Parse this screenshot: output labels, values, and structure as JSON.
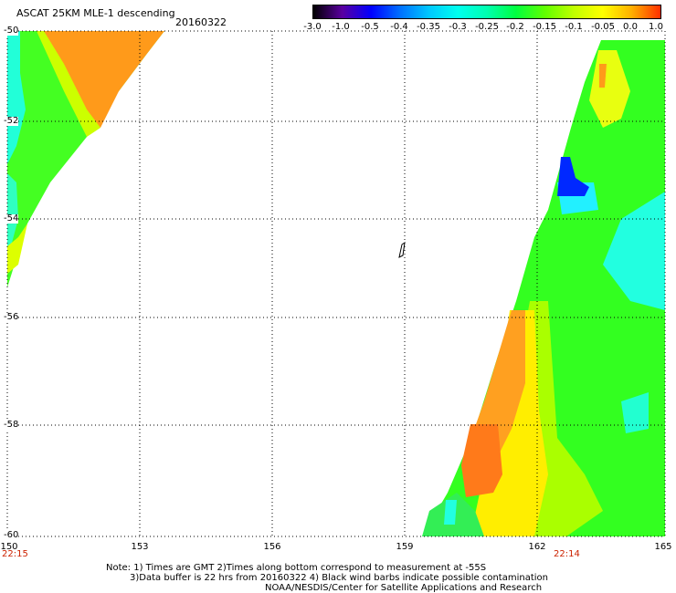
{
  "header": {
    "title": "ASCAT 25KM MLE-1 descending",
    "date": "20160322"
  },
  "colorbar": {
    "labels": [
      "-3.0",
      "-1.0",
      "-0.5",
      "-0.4",
      "-0.35",
      "-0.3",
      "-0.25",
      "-0.2",
      "-0.15",
      "-0.1",
      "-0.05",
      "0.0",
      "1.0"
    ],
    "colors": [
      "#000000",
      "#5a00a0",
      "#0000ff",
      "#0070ff",
      "#00c8ff",
      "#00ffee",
      "#00ffb0",
      "#00ff40",
      "#60ff00",
      "#c0ff00",
      "#ffff00",
      "#ffb000",
      "#ff3000"
    ]
  },
  "axes": {
    "lat_labels": [
      "-50",
      "-52",
      "-54",
      "-56",
      "-58",
      "-60"
    ],
    "lon_labels": [
      "150",
      "153",
      "156",
      "159",
      "162",
      "165"
    ],
    "lat_range": [
      -60,
      -50
    ],
    "lon_range": [
      150,
      165
    ]
  },
  "times": {
    "left": "22:15",
    "right": "22:14"
  },
  "notes": {
    "line1": "Note: 1) Times are GMT 2)Times along bottom correspond to measurement at -55S",
    "line2": "3)Data buffer is 22 hrs from 20160322 4) Black wind barbs indicate possible contamination",
    "line3": "NOAA/NESDIS/Center for Satellite Applications and Research"
  }
}
